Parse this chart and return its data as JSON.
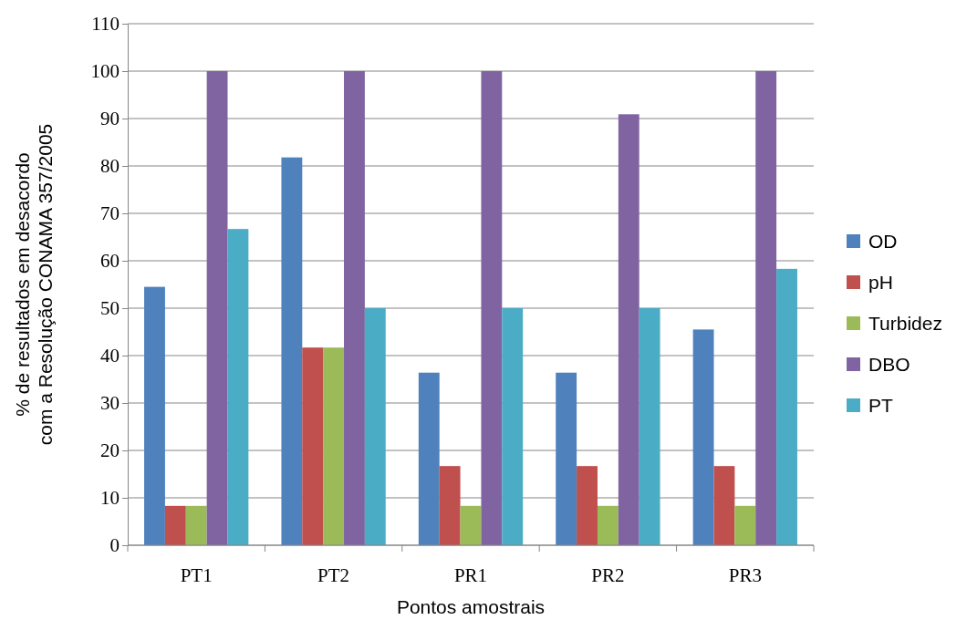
{
  "chart_data": {
    "type": "bar",
    "xlabel": "Pontos amostrais",
    "ylabel": "% de resultados em desacordo com a Resolução CONAMA 357/2005",
    "categories": [
      "PT1",
      "PT2",
      "PR1",
      "PR2",
      "PR3"
    ],
    "series": [
      {
        "name": "OD",
        "color": "#4f81bd",
        "values": [
          54.5,
          81.8,
          36.4,
          36.4,
          45.5
        ]
      },
      {
        "name": "pH",
        "color": "#c0504d",
        "values": [
          8.3,
          41.7,
          16.7,
          16.7,
          16.7
        ]
      },
      {
        "name": "Turbidez",
        "color": "#9bbb59",
        "values": [
          8.3,
          41.7,
          8.3,
          8.3,
          8.3
        ]
      },
      {
        "name": "DBO",
        "color": "#8064a2",
        "values": [
          100,
          100,
          100,
          90.9,
          100
        ]
      },
      {
        "name": "PT",
        "color": "#4bacc6",
        "values": [
          66.7,
          50,
          50,
          50,
          58.3
        ]
      }
    ],
    "ylim": [
      0,
      110
    ],
    "yticks": [
      0,
      10,
      20,
      30,
      40,
      50,
      60,
      70,
      80,
      90,
      100,
      110
    ],
    "grid": "y",
    "legend": "right"
  }
}
